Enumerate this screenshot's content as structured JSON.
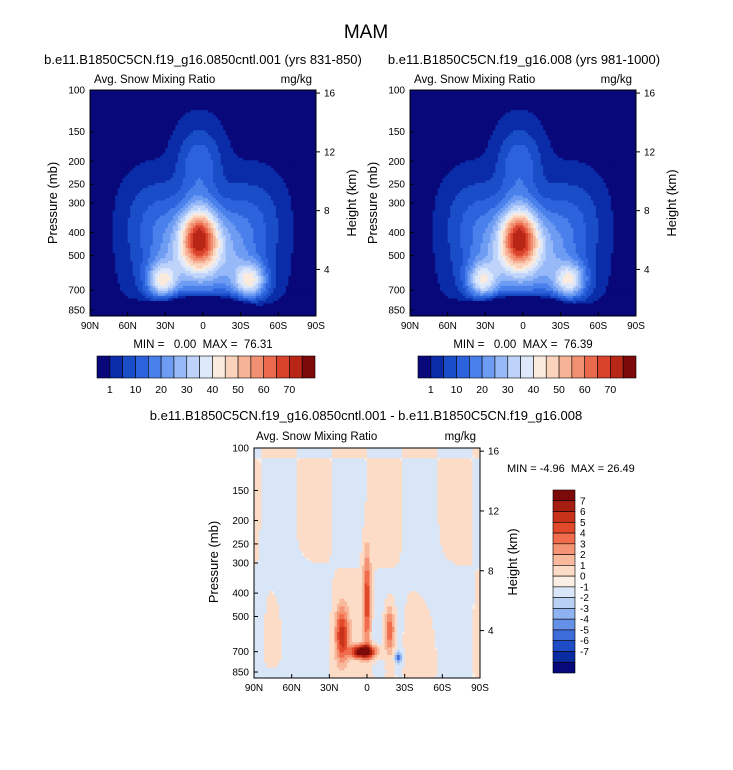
{
  "figure": {
    "title": "MAM"
  },
  "chart_data": [
    {
      "type": "heatmap",
      "title": "b.e11.B1850C5CN.f19_g16.0850cntl.001 (yrs 831-850)",
      "left_label": "Avg. Snow Mixing Ratio",
      "right_label": "mg/kg",
      "xlabel": "",
      "ylabel": "Pressure (mb)",
      "ylabel_right": "Height (km)",
      "x_ticks": [
        "90N",
        "60N",
        "30N",
        "0",
        "30S",
        "60S",
        "90S"
      ],
      "x_range": [
        90,
        -90
      ],
      "y_ticks": [
        "100",
        "150",
        "200",
        "250",
        "300",
        "400",
        "500",
        "700",
        "850"
      ],
      "y_range_mb": [
        100,
        900
      ],
      "y_right_ticks": [
        "16",
        "12",
        "8",
        "4"
      ],
      "stats": "MIN =   0.00  MAX =  76.31",
      "min": 0.0,
      "max": 76.31,
      "colorbar": {
        "labels": [
          "1",
          "10",
          "20",
          "30",
          "40",
          "50",
          "60",
          "70"
        ],
        "levels": [
          1,
          5,
          10,
          15,
          20,
          25,
          30,
          35,
          40,
          45,
          50,
          55,
          60,
          65,
          70
        ],
        "colors": [
          "#08087a",
          "#0b2ca8",
          "#1a4dc8",
          "#2c63dc",
          "#4a80ec",
          "#6e9cf3",
          "#97b9f7",
          "#bed3fa",
          "#dde8fb",
          "#fbeade",
          "#fbd3bd",
          "#f7b396",
          "#f29072",
          "#eb6a4e",
          "#d9432c",
          "#b82616",
          "#7d0a0a"
        ]
      },
      "features": [
        {
          "name": "upper-tropical-plume",
          "lat": 3,
          "p_top_mb": 140,
          "peak": 20
        },
        {
          "name": "equatorial-core",
          "lat": 3,
          "p_mb": 420,
          "peak": 76.3
        },
        {
          "name": "nh-midlatitude-lobe",
          "lat": 33,
          "p_mb": 640,
          "peak": 52
        },
        {
          "name": "sh-midlatitude-lobe",
          "lat": -38,
          "p_mb": 640,
          "peak": 57
        },
        {
          "name": "near-surface-minimum",
          "lat": 0,
          "p_mb": 850,
          "peak": 0
        }
      ]
    },
    {
      "type": "heatmap",
      "title": "b.e11.B1850C5CN.f19_g16.008 (yrs 981-1000)",
      "left_label": "Avg. Snow Mixing Ratio",
      "right_label": "mg/kg",
      "xlabel": "",
      "ylabel": "Pressure (mb)",
      "ylabel_right": "Height (km)",
      "x_ticks": [
        "90N",
        "60N",
        "30N",
        "0",
        "30S",
        "60S",
        "90S"
      ],
      "x_range": [
        90,
        -90
      ],
      "y_ticks": [
        "100",
        "150",
        "200",
        "250",
        "300",
        "400",
        "500",
        "700",
        "850"
      ],
      "y_range_mb": [
        100,
        900
      ],
      "y_right_ticks": [
        "16",
        "12",
        "8",
        "4"
      ],
      "stats": "MIN =   0.00  MAX =  76.39",
      "min": 0.0,
      "max": 76.39,
      "colorbar": {
        "labels": [
          "1",
          "10",
          "20",
          "30",
          "40",
          "50",
          "60",
          "70"
        ],
        "levels": [
          1,
          5,
          10,
          15,
          20,
          25,
          30,
          35,
          40,
          45,
          50,
          55,
          60,
          65,
          70
        ],
        "colors": [
          "#08087a",
          "#0b2ca8",
          "#1a4dc8",
          "#2c63dc",
          "#4a80ec",
          "#6e9cf3",
          "#97b9f7",
          "#bed3fa",
          "#dde8fb",
          "#fbeade",
          "#fbd3bd",
          "#f7b396",
          "#f29072",
          "#eb6a4e",
          "#d9432c",
          "#b82616",
          "#7d0a0a"
        ]
      },
      "features": [
        {
          "name": "upper-tropical-plume",
          "lat": 3,
          "p_top_mb": 140,
          "peak": 20
        },
        {
          "name": "equatorial-core",
          "lat": 3,
          "p_mb": 420,
          "peak": 76.4
        },
        {
          "name": "nh-midlatitude-lobe",
          "lat": 33,
          "p_mb": 640,
          "peak": 50
        },
        {
          "name": "sh-midlatitude-lobe",
          "lat": -38,
          "p_mb": 640,
          "peak": 55
        },
        {
          "name": "near-surface-minimum",
          "lat": 0,
          "p_mb": 850,
          "peak": 0
        }
      ]
    },
    {
      "type": "heatmap",
      "title": "b.e11.B1850C5CN.f19_g16.0850cntl.001 - b.e11.B1850C5CN.f19_g16.008",
      "left_label": "Avg. Snow Mixing Ratio",
      "right_label": "mg/kg",
      "xlabel": "",
      "ylabel": "Pressure (mb)",
      "ylabel_right": "Height (km)",
      "x_ticks": [
        "90N",
        "60N",
        "30N",
        "0",
        "30S",
        "60S",
        "90S"
      ],
      "x_range": [
        90,
        -90
      ],
      "y_ticks": [
        "100",
        "150",
        "200",
        "250",
        "300",
        "400",
        "500",
        "700",
        "850"
      ],
      "y_range_mb": [
        100,
        900
      ],
      "y_right_ticks": [
        "16",
        "12",
        "8",
        "4"
      ],
      "stats": "MIN = -4.96  MAX = 26.49",
      "min": -4.96,
      "max": 26.49,
      "colorbar": {
        "labels": [
          "7",
          "6",
          "5",
          "4",
          "3",
          "2",
          "1",
          "0",
          "-1",
          "-2",
          "-3",
          "-4",
          "-5",
          "-6",
          "-7"
        ],
        "colors_top_to_bottom": [
          "#7d0a0a",
          "#a51e10",
          "#c8321a",
          "#e2492b",
          "#f06c4c",
          "#f49474",
          "#f8b99c",
          "#fcdcc7",
          "#fbeee4",
          "#d9e6f7",
          "#b9d0f5",
          "#8fb2f1",
          "#6590e7",
          "#3d6dda",
          "#1e4bc6",
          "#0b2ba0",
          "#07087a"
        ]
      },
      "features": [
        {
          "name": "nh-lobe-positive",
          "lat": 20,
          "p_mb": 600,
          "peak": 5
        },
        {
          "name": "equatorial-tower",
          "lat": 0,
          "p_mb": 400,
          "peak": 5
        },
        {
          "name": "near-surface-max",
          "lat": 2,
          "p_mb": 700,
          "peak": 26.49
        },
        {
          "name": "sh-lobe-positive",
          "lat": -18,
          "p_mb": 570,
          "peak": 4
        },
        {
          "name": "small-negative-spot",
          "lat": -25,
          "p_mb": 740,
          "peak": -4.96
        }
      ]
    }
  ]
}
